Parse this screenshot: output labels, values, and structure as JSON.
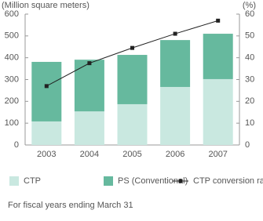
{
  "chart_data": {
    "type": "bar-line",
    "y_label": "(Million square meters)",
    "y2_label": "(%)",
    "categories": [
      "2003",
      "2004",
      "2005",
      "2006",
      "2007"
    ],
    "series": [
      {
        "name": "CTP",
        "color": "#c9e8e0",
        "values": [
          108,
          154,
          187,
          266,
          302
        ]
      },
      {
        "name": "PS (Conventional)",
        "color": "#66b99e",
        "values": [
          273,
          237,
          226,
          215,
          208
        ]
      },
      {
        "name": "CTP conversion rate",
        "color": "#222222",
        "axis": "y2",
        "values": [
          27,
          37.5,
          44.5,
          51,
          57
        ]
      }
    ],
    "ylim": [
      0,
      600
    ],
    "yticks": [
      0,
      100,
      200,
      300,
      400,
      500,
      600
    ],
    "y2lim": [
      0,
      60
    ],
    "y2ticks": [
      0,
      10,
      20,
      30,
      40,
      50,
      60
    ],
    "note": "For fiscal years ending March 31"
  }
}
